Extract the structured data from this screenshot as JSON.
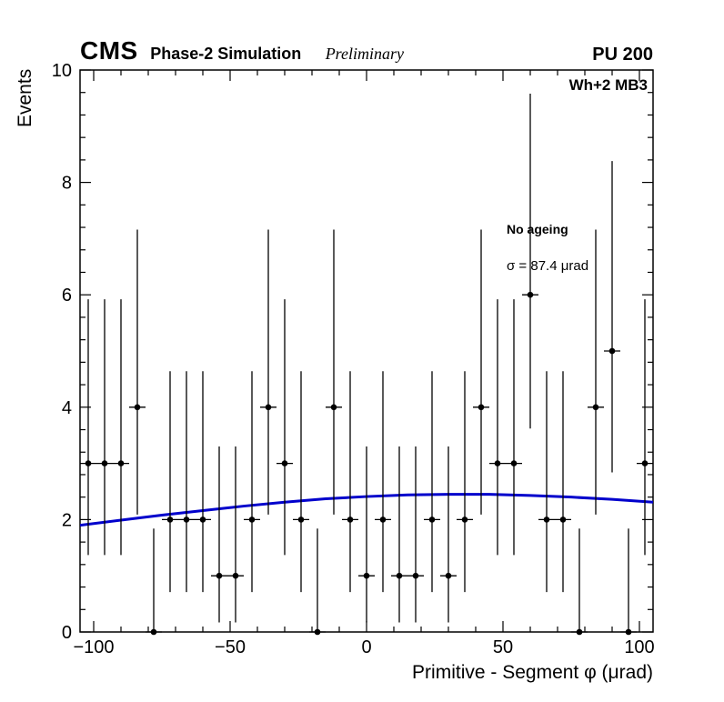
{
  "header": {
    "experiment": "CMS",
    "label": "Phase-2 Simulation",
    "sublabel": "Preliminary",
    "right_label": "PU 200"
  },
  "annotations": {
    "dataset": "Wh+2 MB3",
    "scenario": "No ageing",
    "sigma": "σ = 87.4 μrad"
  },
  "chart_data": {
    "type": "scatter",
    "title": "",
    "xlabel": "Primitive - Segment φ (μrad)",
    "ylabel": "Events",
    "xlim": [
      -105,
      105
    ],
    "ylim": [
      0,
      10
    ],
    "x_major_ticks": [
      -100,
      -50,
      0,
      50,
      100
    ],
    "x_minor_step": 10,
    "y_major_ticks": [
      0,
      2,
      4,
      6,
      8,
      10
    ],
    "y_minor_step": 0.4,
    "grid": false,
    "marker_color": "#000000",
    "fit_color": "#0000cc",
    "bin_half_width": 3,
    "x": [
      -102,
      -96,
      -90,
      -84,
      -78,
      -72,
      -66,
      -60,
      -54,
      -48,
      -42,
      -36,
      -30,
      -24,
      -18,
      -12,
      -6,
      0,
      6,
      12,
      18,
      24,
      30,
      36,
      42,
      48,
      54,
      60,
      66,
      72,
      78,
      84,
      90,
      96,
      102
    ],
    "y": [
      3,
      3,
      3,
      4,
      0,
      2,
      2,
      2,
      1,
      1,
      2,
      4,
      3,
      2,
      0,
      4,
      2,
      1,
      2,
      1,
      1,
      2,
      1,
      2,
      4,
      3,
      3,
      6,
      2,
      2,
      0,
      4,
      5,
      0,
      3
    ],
    "poisson_errors": {
      "0": [
        0,
        1.84
      ],
      "1": [
        0.83,
        2.3
      ],
      "2": [
        1.29,
        2.64
      ],
      "3": [
        1.63,
        2.92
      ],
      "4": [
        1.91,
        3.16
      ],
      "5": [
        2.16,
        3.38
      ],
      "6": [
        2.38,
        3.58
      ]
    },
    "fit_curve": {
      "x": [
        -105,
        -90,
        -75,
        -60,
        -45,
        -30,
        -15,
        0,
        15,
        30,
        45,
        60,
        75,
        90,
        105
      ],
      "y": [
        1.9,
        1.99,
        2.08,
        2.16,
        2.24,
        2.31,
        2.37,
        2.41,
        2.44,
        2.45,
        2.45,
        2.43,
        2.4,
        2.36,
        2.31
      ]
    }
  }
}
